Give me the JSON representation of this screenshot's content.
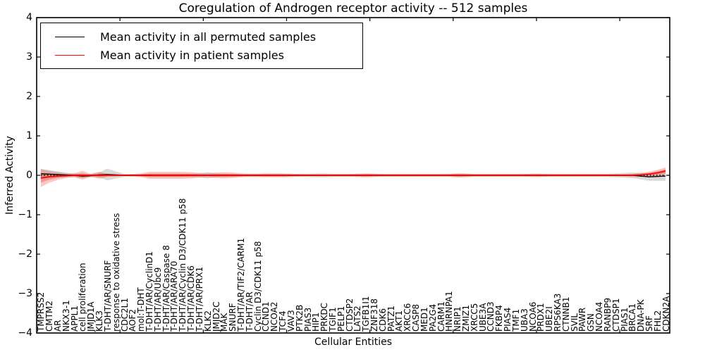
{
  "title": "Coregulation of Androgen receptor activity -- 512 samples",
  "colors": {
    "black_line": "#000000",
    "red_line": "#ff0000",
    "red_band": "#e8392c",
    "gray_band": "#a0a0a0",
    "background": "#ffffff",
    "frame": "#000000"
  },
  "chart_data": {
    "type": "line",
    "title": "Coregulation of Androgen receptor activity -- 512 samples",
    "xlabel": "Cellular Entities",
    "ylabel": "Inferred Activity",
    "ylim": [
      -4,
      4
    ],
    "yticks": [
      4,
      3,
      2,
      1,
      0,
      -1,
      -2,
      -3,
      -4
    ],
    "grid": false,
    "zero_line_dotted": true,
    "legend_position": "upper left",
    "categories": [
      "TMPRSS2",
      "CMTM2",
      "AR",
      "NKX3-1",
      "APPL1",
      "cell proliferation",
      "JMJD1A",
      "KLK3",
      "T-DHT/AR/SNURF",
      "response to oxidative stress",
      "CDC2L1",
      "AOF2",
      "mol:T-DHT",
      "T-DHT/AR/CyclinD1",
      "T-DHT/AR/Ubc9",
      "T-DHT/AR/Caspase 8",
      "T-DHT/AR/ARA70",
      "T-DHT/AR/Cyclin D3/CDK11 p58",
      "T-DHT/AR/CDK6",
      "T-DHT/AR/PRX1",
      "KLK2",
      "JMJD2C",
      "MAK",
      "SNURF",
      "T-DHT/AR/TIF2/CARM1",
      "T-DHT/AR",
      "Cyclin D3/CDK11 p58",
      "CCND1",
      "NCOA2",
      "TCF4",
      "VAV3",
      "PTK2B",
      "PIAS3",
      "HIP1",
      "PRKDC",
      "TGIF1",
      "PELP1",
      "CTDSP2",
      "LATS2",
      "TGFB1I1",
      "ZNF318",
      "CDK6",
      "PATZ1",
      "AKT1",
      "XRCC6",
      "CASP8",
      "MED1",
      "PA2G4",
      "CARM1",
      "HNRNPA1",
      "NRIP1",
      "ZMIZ1",
      "XRCC5",
      "UBE3A",
      "CCND3",
      "FKBP4",
      "PIAS4",
      "TMF1",
      "UBA3",
      "NCOA6",
      "PRDX1",
      "UBE2I",
      "RPS6KA3",
      "CTNNB1",
      "SVIL",
      "PAWR",
      "GSN",
      "NCOA4",
      "RANBP9",
      "CTDSP1",
      "PIAS1",
      "BRCA1",
      "DNA-PK",
      "SRF",
      "FHL2",
      "CDKN2A"
    ],
    "series": [
      {
        "name": "Mean activity in all permuted samples",
        "color": "#000000",
        "band_color": "#a0a0a0",
        "values": [
          0.04,
          0.03,
          0.02,
          0.01,
          0.0,
          -0.02,
          -0.01,
          0.01,
          0.02,
          0.01,
          0,
          0,
          0,
          0,
          0,
          0,
          0,
          0,
          0,
          0,
          0,
          0,
          0,
          0,
          0,
          0,
          0,
          0,
          0,
          0,
          0,
          0,
          0,
          0,
          0,
          0,
          0,
          0,
          0,
          0,
          0,
          0,
          0,
          0,
          0,
          0,
          0,
          0,
          0,
          0,
          0,
          0,
          0,
          0,
          0,
          0,
          0,
          0,
          0,
          0,
          0,
          0,
          0,
          0,
          0,
          0,
          0,
          0,
          0,
          0,
          0,
          0,
          -0.02,
          -0.04,
          -0.03,
          -0.02
        ],
        "band_halfwidth": [
          0.12,
          0.1,
          0.08,
          0.06,
          0.05,
          0.05,
          0.04,
          0.06,
          0.15,
          0.09,
          0.04,
          0.03,
          0.03,
          0.04,
          0.04,
          0.04,
          0.04,
          0.04,
          0.04,
          0.05,
          0.08,
          0.05,
          0.04,
          0.04,
          0.04,
          0.04,
          0.04,
          0.04,
          0.04,
          0.04,
          0.04,
          0.04,
          0.04,
          0.05,
          0.05,
          0.04,
          0.04,
          0.04,
          0.04,
          0.04,
          0.04,
          0.04,
          0.04,
          0.04,
          0.04,
          0.04,
          0.04,
          0.04,
          0.04,
          0.04,
          0.05,
          0.04,
          0.04,
          0.04,
          0.04,
          0.04,
          0.04,
          0.04,
          0.04,
          0.04,
          0.04,
          0.04,
          0.04,
          0.04,
          0.04,
          0.04,
          0.04,
          0.04,
          0.04,
          0.05,
          0.06,
          0.07,
          0.08,
          0.1,
          0.11,
          0.12
        ]
      },
      {
        "name": "Mean activity in patient samples",
        "color": "#ff0000",
        "band_color": "#e8392c",
        "values": [
          -0.07,
          -0.04,
          -0.02,
          -0.01,
          0,
          0,
          0,
          0,
          0,
          0,
          0,
          0,
          0,
          0,
          0,
          0,
          0,
          0,
          0,
          0,
          0,
          0,
          0,
          0,
          0,
          0,
          0,
          0,
          0,
          0,
          0,
          0,
          0,
          0,
          0,
          0,
          0,
          0,
          0,
          0,
          0,
          0,
          0,
          0,
          0,
          0,
          0,
          0,
          0,
          0,
          0,
          0,
          0,
          0,
          0,
          0,
          0,
          0,
          0,
          0,
          0,
          0,
          0,
          0,
          0,
          0,
          0,
          0,
          0,
          0,
          0,
          0,
          0.01,
          0.03,
          0.06,
          0.11
        ],
        "band_halfwidth": [
          0.23,
          0.15,
          0.1,
          0.06,
          0.05,
          0.11,
          0.04,
          0.09,
          0.04,
          0.03,
          0.02,
          0.03,
          0.05,
          0.09,
          0.09,
          0.09,
          0.09,
          0.09,
          0.08,
          0.06,
          0.05,
          0.07,
          0.08,
          0.07,
          0.05,
          0.04,
          0.04,
          0.05,
          0.05,
          0.05,
          0.04,
          0.03,
          0.03,
          0.03,
          0.03,
          0.03,
          0.03,
          0.03,
          0.04,
          0.05,
          0.04,
          0.03,
          0.03,
          0.03,
          0.03,
          0.03,
          0.03,
          0.03,
          0.03,
          0.03,
          0.05,
          0.05,
          0.03,
          0.03,
          0.03,
          0.03,
          0.03,
          0.03,
          0.03,
          0.04,
          0.04,
          0.03,
          0.03,
          0.03,
          0.03,
          0.03,
          0.03,
          0.03,
          0.03,
          0.03,
          0.03,
          0.04,
          0.05,
          0.06,
          0.08,
          0.09
        ]
      }
    ]
  }
}
